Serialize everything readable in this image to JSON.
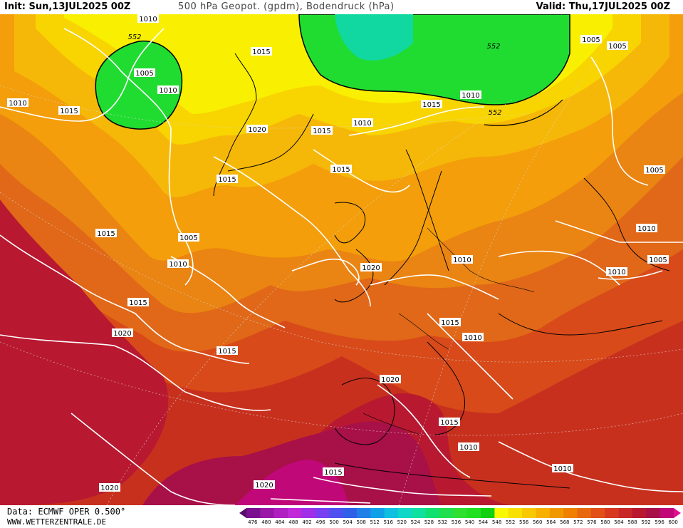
{
  "header": {
    "init": "Init: Sun,13JUL2025 00Z",
    "title": "500 hPa Geopot. (gpdm), Bodendruck (hPa)",
    "valid": "Valid: Thu,17JUL2025 00Z"
  },
  "footer": {
    "data_source": "Data: ECMWF OPER 0.500°",
    "website": "WWW.WETTERZENTRALE.DE"
  },
  "colorbar": {
    "levels": [
      476,
      480,
      484,
      488,
      492,
      496,
      500,
      504,
      508,
      512,
      516,
      520,
      524,
      528,
      532,
      536,
      540,
      544,
      548,
      552,
      556,
      560,
      564,
      568,
      572,
      576,
      580,
      584,
      588,
      592,
      596,
      600
    ],
    "colors": [
      "#5a0a6e",
      "#7a1090",
      "#9a18a8",
      "#b020c0",
      "#c028d8",
      "#a030e8",
      "#7840f0",
      "#5050f0",
      "#3060e8",
      "#2080e8",
      "#10a0e8",
      "#10c0e0",
      "#10d8c8",
      "#10e0a0",
      "#10e070",
      "#20e050",
      "#30e030",
      "#20e020",
      "#10d010",
      "#f8f800",
      "#f8e000",
      "#f8c800",
      "#f8b000",
      "#f09800",
      "#f08000",
      "#e86810",
      "#e05018",
      "#d83820",
      "#c82828",
      "#b81830",
      "#a81048",
      "#c00878",
      "#e01090"
    ]
  },
  "map": {
    "isobar_labels": [
      "1010",
      "552",
      "1005",
      "1010",
      "1015",
      "1010",
      "1015",
      "1020",
      "1015",
      "1010",
      "1015",
      "1015",
      "1005",
      "1010",
      "1015",
      "1020",
      "1015",
      "1015",
      "1010",
      "1020",
      "1015",
      "1010",
      "1015",
      "1020",
      "1015",
      "1010",
      "1015",
      "1010",
      "1020",
      "1020",
      "1005",
      "1005",
      "1010",
      "1010",
      "1010",
      "1005",
      "552",
      "552",
      "1010",
      "1010",
      "1005"
    ],
    "isobar_label_ids": [
      "lbl-1010-nw",
      "lbl-552-w",
      "lbl-1005-w",
      "lbl-1010-w2",
      "lbl-1015-nw",
      "lbl-1010-far-w",
      "lbl-1015-gr",
      "lbl-1020-gr",
      "lbl-1015-gr2",
      "lbl-1010-nsea",
      "lbl-1015-nor",
      "lbl-1015-ice",
      "lbl-1005-atl",
      "lbl-1010-atl",
      "lbl-1015-atl",
      "lbl-1020-uk",
      "lbl-1015-atl2",
      "lbl-1015-w2",
      "lbl-1010-cen",
      "lbl-1020-spain",
      "lbl-1015-it",
      "lbl-1010-bal",
      "lbl-1015-med",
      "lbl-1020-atl-s",
      "lbl-1015-afr",
      "lbl-1010-afr",
      "lbl-1015-afr2",
      "lbl-1010-east",
      "lbl-1020-w",
      "lbl-1020-sw",
      "lbl-1005-e",
      "lbl-1005-ne",
      "lbl-1010-e2",
      "lbl-1010-e3",
      "lbl-1010-e4",
      "lbl-1005-e2",
      "lbl-552-n",
      "lbl-552-ne",
      "lbl-1010-n",
      "lbl-1010-se",
      "lbl-1005-ne2"
    ],
    "field_legend": "geopotential 500 hPa"
  }
}
